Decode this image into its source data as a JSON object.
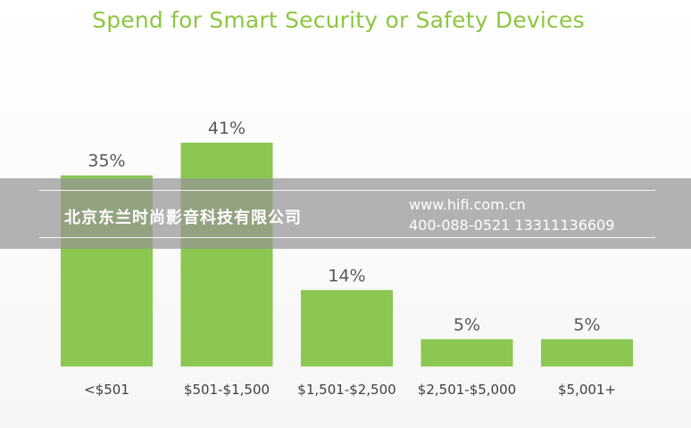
{
  "chart_data": {
    "type": "bar",
    "title": "Spend for Smart Security or Safety Devices",
    "categories": [
      "<$501",
      "$501-$1,500",
      "$1,501-$2,500",
      "$2,501-$5,000",
      "$5,001+"
    ],
    "values": [
      35,
      41,
      14,
      5,
      5
    ],
    "data_labels": [
      "35%",
      "41%",
      "14%",
      "5%",
      "5%"
    ],
    "value_unit": "%",
    "ylim": [
      0,
      41
    ],
    "grid": false,
    "bar_color": "#8bc751",
    "title_color": "#8cc63f"
  },
  "watermark": {
    "company": "北京东兰时尚影音科技有限公司",
    "url": "www.hifi.com.cn",
    "phones": "400-088-0521  13311136609"
  }
}
